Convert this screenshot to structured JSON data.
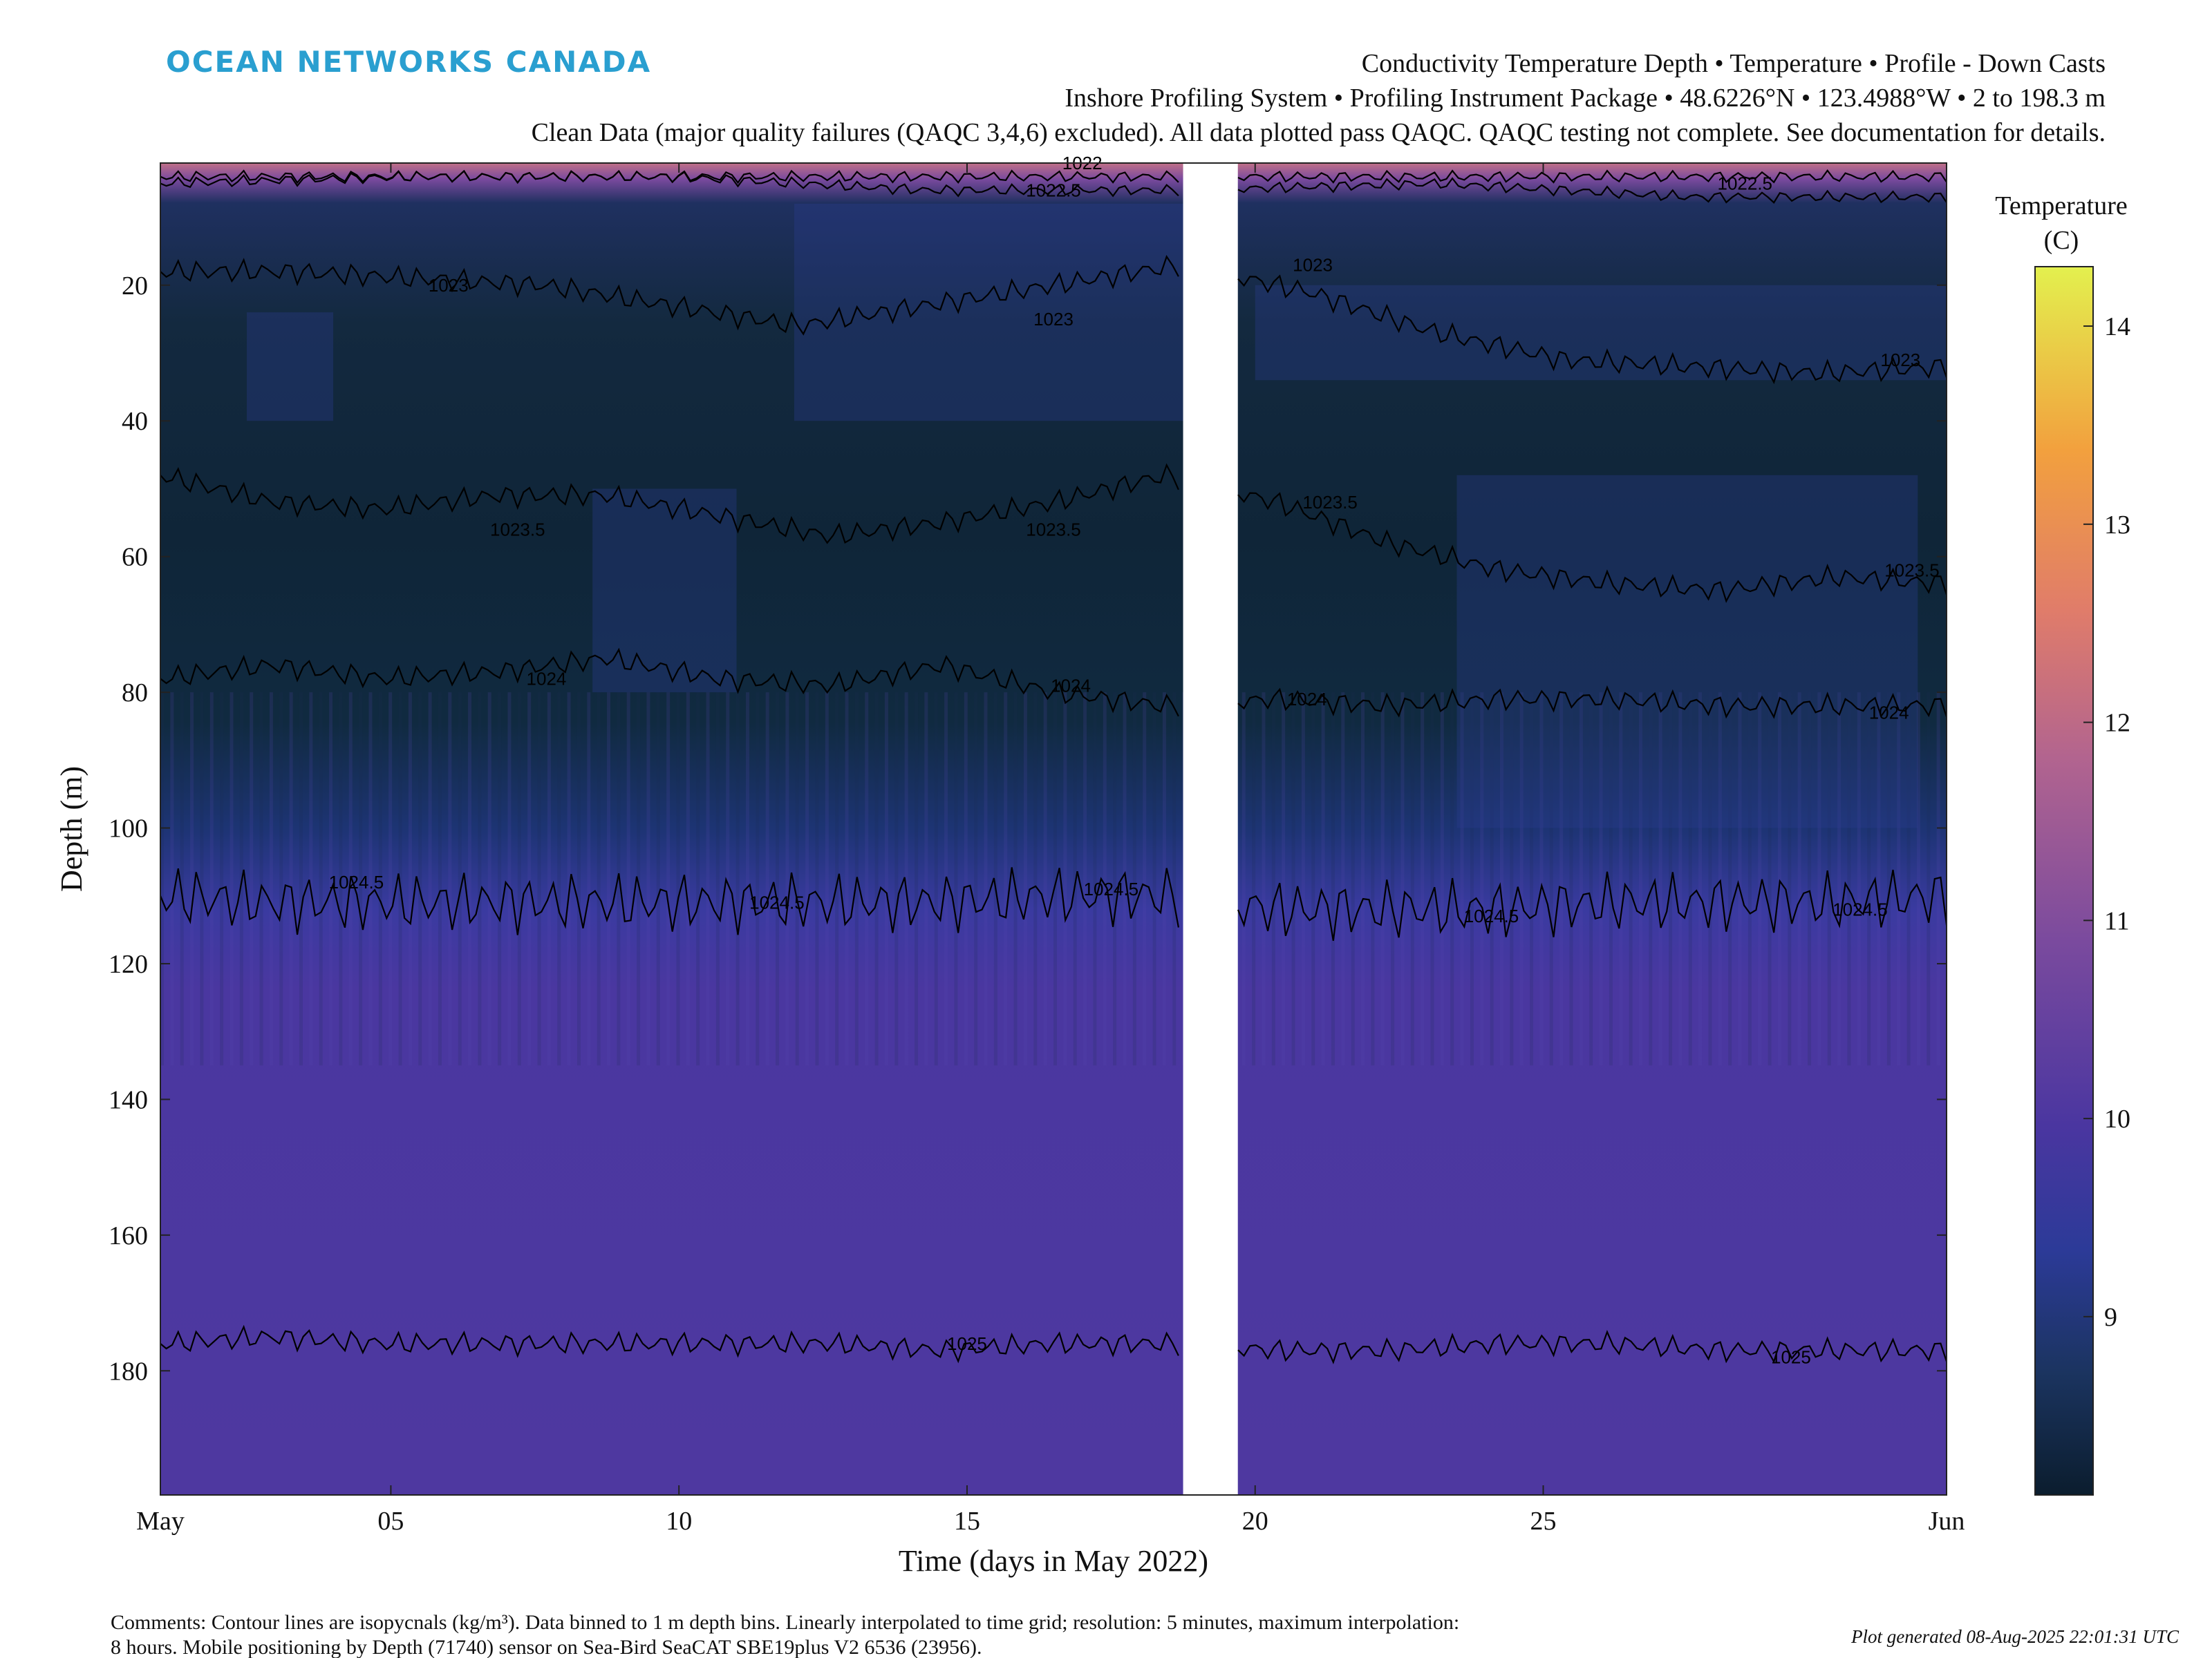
{
  "brand": "OCEAN NETWORKS CANADA",
  "header": {
    "line1": "Conductivity Temperature Depth • Temperature • Profile - Down Casts",
    "line2": "Inshore Profiling System • Profiling Instrument Package • 48.6226°N • 123.4988°W • 2 to 198.3 m",
    "line3": "Clean Data (major quality failures (QAQC 3,4,6) excluded). All data plotted pass QAQC. QAQC testing not complete. See documentation for details."
  },
  "footer": {
    "comments_line1": "Comments: Contour lines are isopycnals (kg/m³). Data binned to 1 m depth bins. Linearly interpolated to time grid; resolution: 5 minutes, maximum interpolation:",
    "comments_line2": "8 hours. Mobile positioning by Depth (71740) sensor on Sea-Bird SeaCAT SBE19plus V2 6536 (23956).",
    "generated": "Plot generated 08-Aug-2025 22:01:31 UTC"
  },
  "colors": {
    "deep_water": "#4a37a0",
    "cold_core": "#0f2a3e",
    "mid_layer": "#2c3e8f",
    "surface_warm": "#c07090",
    "gap": "#ffffff"
  },
  "chart_data": {
    "type": "heatmap",
    "xlabel": "Time (days in May 2022)",
    "ylabel": "Depth (m)",
    "xlim": [
      "2022-05-01",
      "2022-06-01"
    ],
    "ylim": [
      198.3,
      2
    ],
    "x_ticks": [
      {
        "label": "May",
        "day": 1
      },
      {
        "label": "05",
        "day": 5
      },
      {
        "label": "10",
        "day": 10
      },
      {
        "label": "15",
        "day": 15
      },
      {
        "label": "20",
        "day": 20
      },
      {
        "label": "25",
        "day": 25
      },
      {
        "label": "Jun",
        "day": 32
      }
    ],
    "y_ticks": [
      20,
      40,
      60,
      80,
      100,
      120,
      140,
      160,
      180
    ],
    "data_gap_days": [
      18.75,
      19.7
    ],
    "colorbar": {
      "title_line1": "Temperature",
      "title_line2": "(C)",
      "range": [
        8.1,
        14.3
      ],
      "ticks": [
        9,
        10,
        11,
        12,
        13,
        14
      ],
      "colormap": [
        "#0b1d2e",
        "#1b3460",
        "#2c3a98",
        "#4a36a0",
        "#7a4a9e",
        "#b2648f",
        "#e07c6a",
        "#f2a03e",
        "#e3f04e"
      ]
    },
    "isopycnals": [
      {
        "label": "1022",
        "depths": [
          4,
          4,
          4,
          4,
          4,
          4,
          4,
          4
        ]
      },
      {
        "label": "1022.5",
        "depths": [
          5,
          4,
          4,
          6,
          6,
          5,
          7,
          7
        ]
      },
      {
        "label": "1023",
        "depths": [
          18,
          18,
          19,
          20,
          23,
          26,
          23,
          20,
          17,
          21,
          27,
          31,
          32,
          33,
          32
        ]
      },
      {
        "label": "1023.5",
        "depths": [
          48,
          52,
          53,
          51,
          51,
          54,
          57,
          55,
          52,
          48,
          52,
          58,
          62,
          64,
          65,
          63,
          64
        ]
      },
      {
        "label": "1024",
        "depths": [
          78,
          76,
          78,
          77,
          75,
          78,
          79,
          76,
          80,
          82,
          81,
          82,
          81,
          81,
          82,
          82,
          82
        ]
      },
      {
        "label": "1024.5",
        "depths": [
          110,
          111,
          111,
          111,
          111,
          111,
          111,
          111,
          110,
          110,
          112,
          112,
          112,
          111,
          111,
          111,
          110
        ]
      },
      {
        "label": "1025",
        "depths": [
          176,
          175,
          176,
          176,
          176,
          176,
          176,
          177,
          176,
          176,
          177,
          177,
          176,
          176,
          177,
          177,
          177
        ]
      }
    ],
    "contour_labels": [
      {
        "text": "1022",
        "day": 17.0,
        "depth": 2
      },
      {
        "text": "1022.5",
        "day": 16.5,
        "depth": 6
      },
      {
        "text": "1022.5",
        "day": 28.5,
        "depth": 5
      },
      {
        "text": "1023",
        "day": 6.0,
        "depth": 20
      },
      {
        "text": "1023",
        "day": 16.5,
        "depth": 25
      },
      {
        "text": "1023",
        "day": 21.0,
        "depth": 17
      },
      {
        "text": "1023",
        "day": 31.2,
        "depth": 31
      },
      {
        "text": "1023.5",
        "day": 7.2,
        "depth": 56
      },
      {
        "text": "1023.5",
        "day": 16.5,
        "depth": 56
      },
      {
        "text": "1023.5",
        "day": 21.3,
        "depth": 52
      },
      {
        "text": "1023.5",
        "day": 31.4,
        "depth": 62
      },
      {
        "text": "1024",
        "day": 7.7,
        "depth": 78
      },
      {
        "text": "1024",
        "day": 16.8,
        "depth": 79
      },
      {
        "text": "1024",
        "day": 20.9,
        "depth": 81
      },
      {
        "text": "1024",
        "day": 31.0,
        "depth": 83
      },
      {
        "text": "1024.5",
        "day": 4.4,
        "depth": 108
      },
      {
        "text": "1024.5",
        "day": 11.7,
        "depth": 111
      },
      {
        "text": "1024.5",
        "day": 17.5,
        "depth": 109
      },
      {
        "text": "1024.5",
        "day": 24.1,
        "depth": 113
      },
      {
        "text": "1024.5",
        "day": 30.5,
        "depth": 112
      },
      {
        "text": "1025",
        "day": 15.0,
        "depth": 176
      },
      {
        "text": "1025",
        "day": 29.3,
        "depth": 178
      }
    ]
  }
}
